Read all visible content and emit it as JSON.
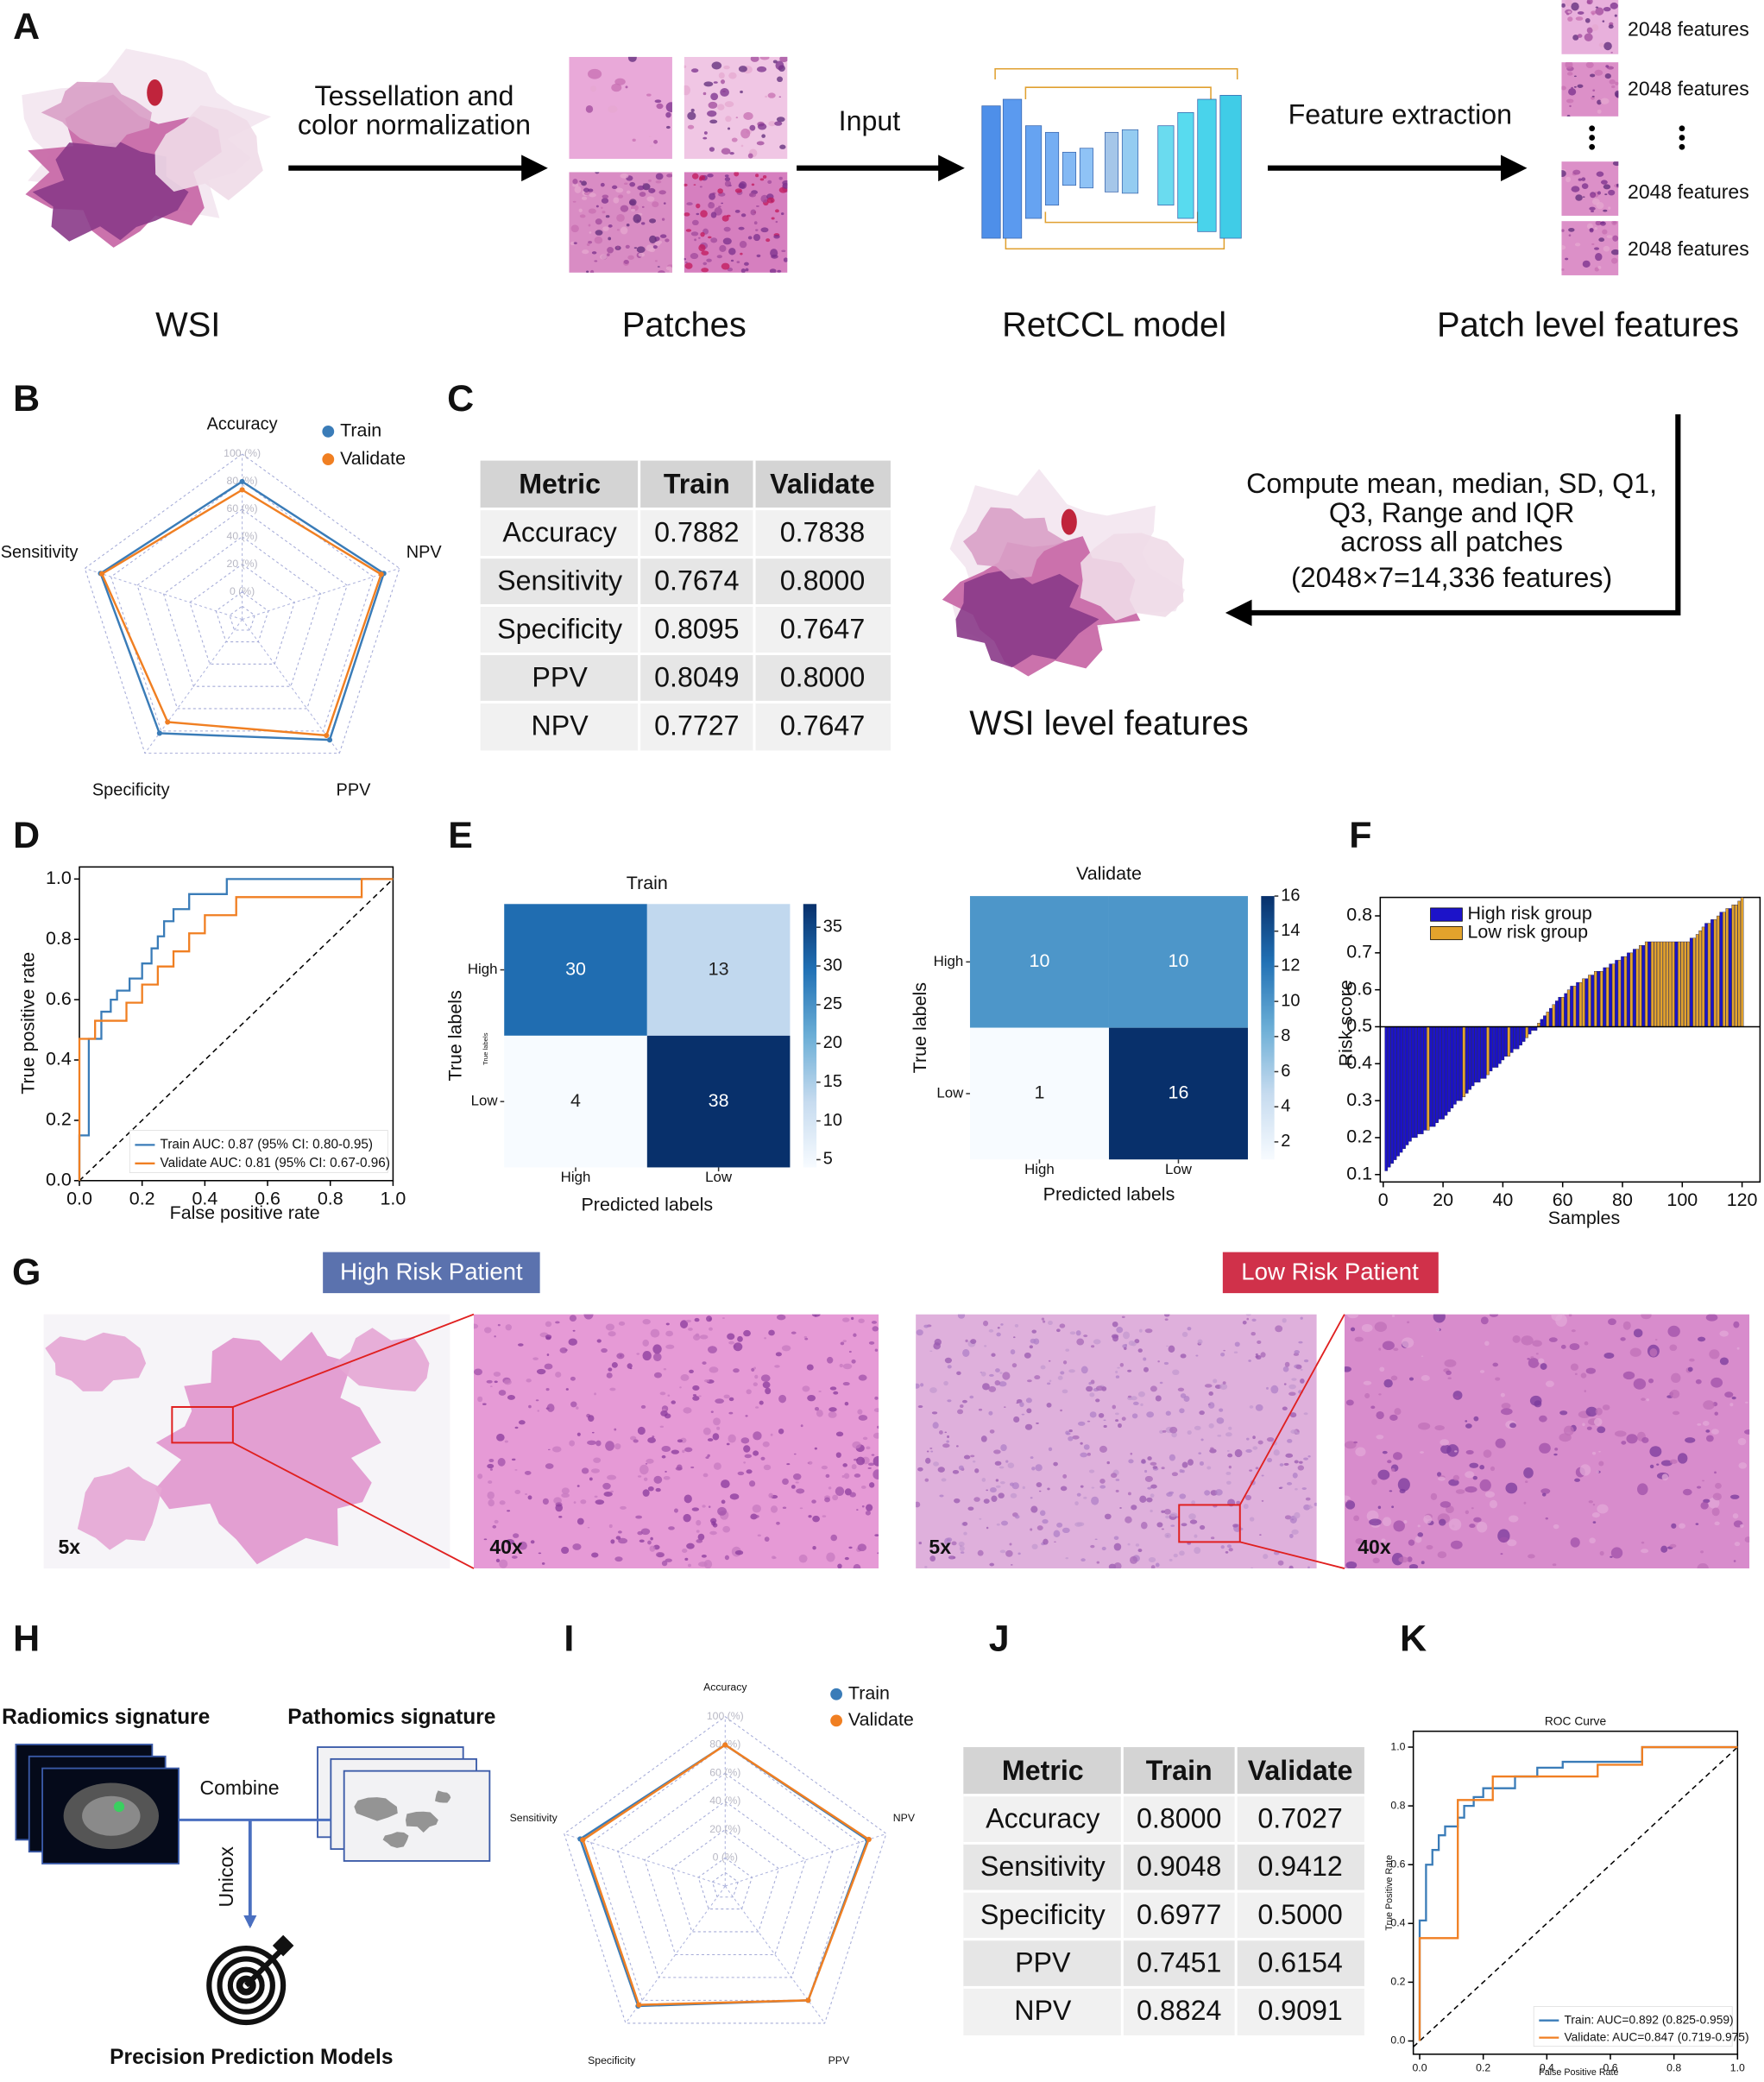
{
  "panel_labels": [
    "A",
    "B",
    "C",
    "D",
    "E",
    "F",
    "G",
    "H",
    "I",
    "J",
    "K"
  ],
  "panel_a": {
    "arrow_1": [
      "Tessellation and",
      "color normalization"
    ],
    "arrow_2": "Input",
    "arrow_3": "Feature extraction",
    "features": [
      "2048 features",
      "2048 features",
      "2048 features",
      "2048 features"
    ],
    "captions": [
      "WSI",
      "Patches",
      "RetCCL model",
      "Patch level features"
    ]
  },
  "panel_c": {
    "note": [
      "Compute mean, median, SD, Q1,",
      "Q3, Range and IQR",
      "across all patches",
      "(2048×7=14,336 features)"
    ],
    "caption": "WSI level features",
    "table": {
      "columns": [
        "Metric",
        "Train",
        "Validate"
      ],
      "rows": [
        [
          "Accuracy",
          "0.7882",
          "0.7838"
        ],
        [
          "Sensitivity",
          "0.7674",
          "0.8000"
        ],
        [
          "Specificity",
          "0.8095",
          "0.7647"
        ],
        [
          "PPV",
          "0.8049",
          "0.8000"
        ],
        [
          "NPV",
          "0.7727",
          "0.7647"
        ]
      ]
    }
  },
  "panel_g": {
    "high": "High Risk Patient",
    "low": "Low Risk Patient",
    "magnifications": [
      "5x",
      "40x",
      "5x",
      "40x"
    ]
  },
  "panel_h": {
    "radiomics": "Radiomics signature",
    "pathomics": "Pathomics signature",
    "combine": "Combine",
    "method": "Unicox",
    "output": "Precision Prediction Models"
  },
  "panel_j": {
    "table": {
      "columns": [
        "Metric",
        "Train",
        "Validate"
      ],
      "rows": [
        [
          "Accuracy",
          "0.8000",
          "0.7027"
        ],
        [
          "Sensitivity",
          "0.9048",
          "0.9412"
        ],
        [
          "Specificity",
          "0.6977",
          "0.5000"
        ],
        [
          "PPV",
          "0.7451",
          "0.6154"
        ],
        [
          "NPV",
          "0.8824",
          "0.9091"
        ]
      ]
    }
  },
  "chart_data": [
    {
      "type": "radar",
      "axes": [
        "Accuracy",
        "NPV",
        "PPV",
        "Specificity",
        "Sensitivity"
      ],
      "rlim": [
        -20,
        100
      ],
      "rticks": [
        {
          "value": 0,
          "label": "0 (%)"
        },
        {
          "value": 20,
          "label": "20 (%)"
        },
        {
          "value": 40,
          "label": "40 (%)"
        },
        {
          "value": 60,
          "label": "60 (%)"
        },
        {
          "value": 80,
          "label": "80 (%)"
        },
        {
          "value": 100,
          "label": "100 (%)"
        }
      ],
      "grid": true,
      "legend": "upper right",
      "series": [
        {
          "name": "Train",
          "color": "#3a7cb8",
          "values": [
            80,
            88,
            88,
            82,
            88
          ]
        },
        {
          "name": "Validate",
          "color": "#f07f22",
          "values": [
            74,
            86,
            84,
            72,
            87
          ]
        }
      ]
    },
    {
      "type": "line",
      "xlabel": "False positive rate",
      "ylabel": "True positive rate",
      "xlim": [
        0,
        1
      ],
      "ylim": [
        0,
        1.04
      ],
      "xticks": [
        {
          "value": 0,
          "label": "0.0"
        },
        0.2,
        0.4,
        0.6,
        0.8,
        {
          "value": 1,
          "label": "1.0"
        }
      ],
      "yticks": [
        {
          "value": 0,
          "label": "0.0"
        },
        0.2,
        0.4,
        0.6,
        0.8,
        {
          "value": 1,
          "label": "1.0"
        }
      ],
      "legend": "lower right",
      "diagonal": true,
      "series": [
        {
          "name": "Train AUC: 0.87 (95% CI: 0.80-0.95)",
          "color": "#3a7cb8",
          "x": [
            0,
            0,
            0.03,
            0.03,
            0.07,
            0.07,
            0.1,
            0.1,
            0.12,
            0.12,
            0.16,
            0.16,
            0.2,
            0.2,
            0.23,
            0.23,
            0.25,
            0.25,
            0.27,
            0.27,
            0.3,
            0.3,
            0.35,
            0.35,
            0.47,
            0.47,
            1
          ],
          "values": [
            0,
            0.15,
            0.15,
            0.47,
            0.47,
            0.56,
            0.56,
            0.6,
            0.6,
            0.63,
            0.63,
            0.67,
            0.67,
            0.72,
            0.72,
            0.77,
            0.77,
            0.81,
            0.81,
            0.86,
            0.86,
            0.9,
            0.9,
            0.95,
            0.95,
            1,
            1
          ]
        },
        {
          "name": "Validate AUC: 0.81 (95% CI: 0.67-0.96)",
          "color": "#f07f22",
          "x": [
            0,
            0,
            0.05,
            0.05,
            0.15,
            0.15,
            0.2,
            0.2,
            0.25,
            0.25,
            0.3,
            0.3,
            0.35,
            0.35,
            0.4,
            0.4,
            0.5,
            0.5,
            0.9,
            0.9,
            1
          ],
          "values": [
            0,
            0.47,
            0.47,
            0.53,
            0.53,
            0.59,
            0.59,
            0.65,
            0.65,
            0.71,
            0.71,
            0.76,
            0.76,
            0.82,
            0.82,
            0.88,
            0.88,
            0.94,
            0.94,
            1,
            1
          ]
        }
      ]
    },
    {
      "type": "heatmap",
      "title": "Train",
      "xlabel": "Predicted labels",
      "ylabel": "True labels",
      "annotation": "True labels",
      "x_categories": [
        "High",
        "Low"
      ],
      "y_categories": [
        "High",
        "Low"
      ],
      "values": [
        [
          30,
          13
        ],
        [
          4,
          38
        ]
      ],
      "vlim": [
        4,
        38
      ],
      "cticks": [
        5,
        10,
        15,
        20,
        25,
        30,
        35
      ],
      "colormap": [
        "#f7fbff",
        "#c6dbef",
        "#6baed6",
        "#2171b5",
        "#08306b"
      ]
    },
    {
      "type": "heatmap",
      "title": "Validate",
      "xlabel": "Predicted labels",
      "ylabel": "True labels",
      "x_categories": [
        "High",
        "Low"
      ],
      "y_categories": [
        "High",
        "Low"
      ],
      "values": [
        [
          10,
          10
        ],
        [
          1,
          16
        ]
      ],
      "vlim": [
        1,
        16
      ],
      "cticks": [
        2,
        4,
        6,
        8,
        10,
        12,
        14,
        16
      ],
      "colormap": [
        "#f7fbff",
        "#c6dbef",
        "#6baed6",
        "#2171b5",
        "#08306b"
      ]
    },
    {
      "type": "bar",
      "xlabel": "Samples",
      "ylabel": "Risk score",
      "baseline": 0.5,
      "xlim": [
        -1,
        126
      ],
      "ylim": [
        0.08,
        0.85
      ],
      "xticks": [
        0,
        20,
        40,
        60,
        80,
        100,
        120
      ],
      "yticks": [
        0.1,
        0.2,
        0.3,
        0.4,
        0.5,
        0.6,
        0.7,
        0.8
      ],
      "legend": "upper left",
      "x": [
        1,
        2,
        3,
        4,
        5,
        6,
        7,
        8,
        9,
        10,
        11,
        12,
        13,
        14,
        15,
        16,
        17,
        18,
        19,
        20,
        21,
        22,
        23,
        24,
        25,
        26,
        27,
        28,
        29,
        30,
        31,
        32,
        33,
        34,
        35,
        36,
        37,
        38,
        39,
        40,
        41,
        42,
        43,
        44,
        45,
        46,
        47,
        48,
        49,
        50,
        51,
        52,
        53,
        54,
        55,
        56,
        57,
        58,
        59,
        60,
        61,
        62,
        63,
        64,
        65,
        66,
        67,
        68,
        69,
        70,
        71,
        72,
        73,
        74,
        75,
        76,
        77,
        78,
        79,
        80,
        81,
        82,
        83,
        84,
        85,
        86,
        87,
        88,
        89,
        90,
        91,
        92,
        93,
        94,
        95,
        96,
        97,
        98,
        99,
        100,
        101,
        102,
        103,
        104,
        105,
        106,
        107,
        108,
        109,
        110,
        111,
        112,
        113,
        114,
        115,
        116,
        117,
        118,
        119,
        120
      ],
      "series": [
        {
          "name": "High risk group",
          "color": "#1c13c9",
          "values": [
            0.11,
            0.12,
            0.13,
            0.14,
            0.15,
            0.16,
            0.17,
            0.18,
            0.19,
            0.2,
            0.2,
            0.21,
            0.21,
            0.22,
            null,
            0.23,
            0.23,
            0.24,
            0.25,
            0.25,
            0.26,
            0.27,
            0.28,
            0.29,
            0.3,
            0.3,
            null,
            0.32,
            0.33,
            0.34,
            0.35,
            0.35,
            0.36,
            0.36,
            null,
            0.38,
            0.39,
            0.39,
            0.4,
            0.41,
            0.42,
            null,
            0.43,
            0.44,
            0.44,
            0.45,
            0.46,
            null,
            0.48,
            0.49,
            0.49,
            null,
            0.52,
            0.53,
            null,
            0.55,
            null,
            0.57,
            0.58,
            null,
            0.59,
            null,
            0.61,
            null,
            0.62,
            null,
            null,
            0.63,
            null,
            0.64,
            null,
            0.65,
            null,
            0.66,
            null,
            0.67,
            null,
            0.68,
            null,
            0.69,
            null,
            0.7,
            null,
            0.71,
            null,
            null,
            0.72,
            null,
            0.73,
            null,
            null,
            null,
            null,
            null,
            null,
            null,
            null,
            0.73,
            null,
            null,
            null,
            null,
            0.74,
            null,
            null,
            null,
            null,
            0.78,
            null,
            0.79,
            null,
            null,
            0.81,
            null,
            null,
            0.82,
            null,
            null,
            null,
            null
          ]
        },
        {
          "name": "Low risk group",
          "color": "#e3a32c",
          "values": [
            null,
            null,
            null,
            null,
            null,
            null,
            null,
            null,
            null,
            null,
            null,
            null,
            null,
            null,
            0.22,
            null,
            null,
            null,
            null,
            null,
            null,
            null,
            null,
            null,
            null,
            null,
            0.31,
            null,
            null,
            null,
            null,
            null,
            null,
            null,
            0.37,
            null,
            null,
            null,
            null,
            null,
            null,
            0.42,
            null,
            null,
            null,
            null,
            null,
            0.47,
            null,
            null,
            null,
            0.51,
            null,
            null,
            0.54,
            null,
            0.56,
            null,
            null,
            0.58,
            null,
            0.6,
            null,
            0.61,
            null,
            0.62,
            0.63,
            null,
            0.64,
            null,
            0.65,
            null,
            0.65,
            null,
            0.66,
            null,
            0.67,
            null,
            0.68,
            null,
            0.69,
            null,
            0.7,
            null,
            0.71,
            0.72,
            null,
            0.73,
            null,
            0.73,
            0.73,
            0.73,
            0.73,
            0.73,
            0.73,
            0.73,
            0.73,
            null,
            0.73,
            0.73,
            0.73,
            0.73,
            null,
            0.74,
            0.75,
            0.76,
            0.77,
            null,
            0.78,
            null,
            0.79,
            0.8,
            null,
            0.81,
            0.82,
            null,
            0.83,
            0.83,
            0.84,
            0.85
          ]
        }
      ]
    },
    {
      "type": "radar",
      "axes": [
        "Accuracy",
        "NPV",
        "PPV",
        "Specificity",
        "Sensitivity"
      ],
      "rlim": [
        -20,
        100
      ],
      "rticks": [
        {
          "value": 0,
          "label": "0 (%)"
        },
        {
          "value": 20,
          "label": "20 (%)"
        },
        {
          "value": 40,
          "label": "40 (%)"
        },
        {
          "value": 60,
          "label": "60 (%)"
        },
        {
          "value": 80,
          "label": "80 (%)"
        },
        {
          "value": 100,
          "label": "100 (%)"
        }
      ],
      "grid": true,
      "legend": "upper right",
      "series": [
        {
          "name": "Train",
          "color": "#3a7cb8",
          "values": [
            80,
            86,
            80,
            85,
            88
          ]
        },
        {
          "name": "Validate",
          "color": "#f07f22",
          "values": [
            80,
            87,
            80,
            84,
            86
          ]
        }
      ]
    },
    {
      "type": "line",
      "title": "ROC Curve",
      "xlabel": "False Positive Rate",
      "ylabel": "True Positive Rate",
      "xlim": [
        -0.02,
        1
      ],
      "ylim": [
        -0.045,
        1.054
      ],
      "xticks": [
        {
          "value": 0,
          "label": "0.0"
        },
        0.2,
        0.4,
        0.6,
        0.8,
        {
          "value": 1,
          "label": "1.0"
        }
      ],
      "yticks": [
        {
          "value": 0,
          "label": "0.0"
        },
        0.2,
        0.4,
        0.6,
        0.8,
        {
          "value": 1,
          "label": "1.0"
        }
      ],
      "legend": "lower right",
      "diagonal": true,
      "series": [
        {
          "name": "Train: AUC=0.892 (0.825-0.959)",
          "color": "#3a7cb8",
          "x": [
            0,
            0,
            0.02,
            0.02,
            0.04,
            0.04,
            0.06,
            0.06,
            0.08,
            0.08,
            0.12,
            0.12,
            0.14,
            0.14,
            0.17,
            0.17,
            0.2,
            0.2,
            0.3,
            0.3,
            0.37,
            0.37,
            0.45,
            0.45,
            0.7,
            0.7,
            1
          ],
          "values": [
            0,
            0.41,
            0.41,
            0.6,
            0.6,
            0.65,
            0.65,
            0.7,
            0.7,
            0.73,
            0.73,
            0.76,
            0.76,
            0.8,
            0.8,
            0.83,
            0.83,
            0.86,
            0.86,
            0.9,
            0.9,
            0.93,
            0.93,
            0.95,
            0.95,
            1,
            1
          ]
        },
        {
          "name": "Validate: AUC=0.847 (0.719-0.975)",
          "color": "#f07f22",
          "x": [
            0,
            0,
            0.12,
            0.12,
            0.23,
            0.23,
            0.56,
            0.56,
            0.7,
            0.7,
            1
          ],
          "values": [
            0,
            0.35,
            0.35,
            0.82,
            0.82,
            0.9,
            0.9,
            0.94,
            0.94,
            1,
            1
          ]
        }
      ]
    }
  ]
}
